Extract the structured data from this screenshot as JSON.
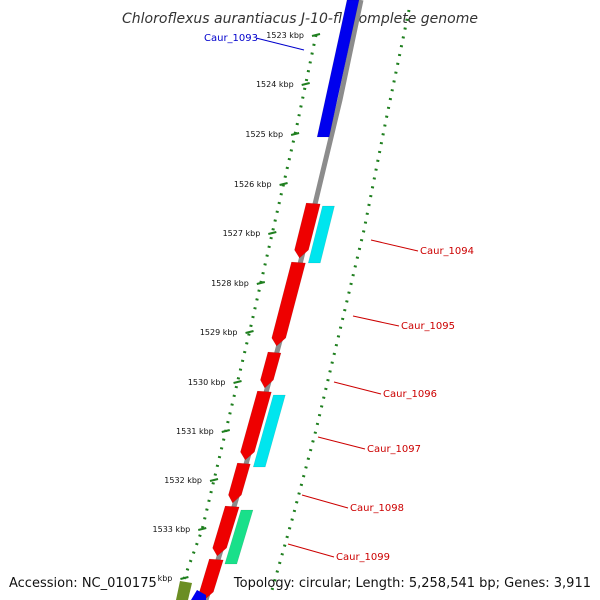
{
  "title": "Chloroflexus aurantiacus J-10-fl, complete genome",
  "footer": {
    "accession": "Accession: NC_010175",
    "topology": "Topology: circular; Length: 5,258,541 bp; Genes: 3,911"
  },
  "colors": {
    "backbone": "#8c8c8c",
    "ticks": "#1f7f1f",
    "reverse_strand_gene": "#0000ee",
    "forward_strand_gene": "#ee0000",
    "cds_feature": "#00e5ee",
    "cds_feature_alt": "#19e08a",
    "other_feature": "#6b8e23",
    "label_forward": "#cc0000",
    "label_reverse": "#0000cc"
  },
  "tick_labels": [
    "1523 kbp",
    "1524 kbp",
    "1525 kbp",
    "1526 kbp",
    "1527 kbp",
    "1528 kbp",
    "1529 kbp",
    "1530 kbp",
    "1531 kbp",
    "1532 kbp",
    "1533 kbp",
    "kbp"
  ],
  "genes": [
    {
      "label": "Caur_1093",
      "strand": "reverse"
    },
    {
      "label": "Caur_1094",
      "strand": "forward"
    },
    {
      "label": "Caur_1095",
      "strand": "forward"
    },
    {
      "label": "Caur_1096",
      "strand": "forward"
    },
    {
      "label": "Caur_1097",
      "strand": "forward"
    },
    {
      "label": "Caur_1098",
      "strand": "forward"
    },
    {
      "label": "Caur_1099",
      "strand": "forward"
    }
  ]
}
